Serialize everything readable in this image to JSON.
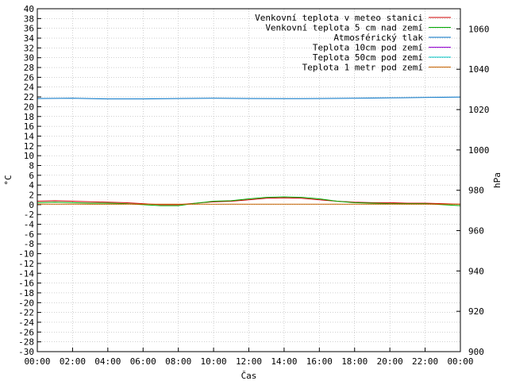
{
  "chart_data": {
    "type": "line",
    "title": "",
    "xlabel": "Čas",
    "ylabel": "°C",
    "y2label": "hPa",
    "ylim": [
      -30,
      40
    ],
    "y2lim": [
      900,
      1070
    ],
    "xlim": [
      0,
      24
    ],
    "x_ticks": [
      "00:00",
      "02:00",
      "04:00",
      "06:00",
      "08:00",
      "10:00",
      "12:00",
      "14:00",
      "16:00",
      "18:00",
      "20:00",
      "22:00",
      "00:00"
    ],
    "y_ticks": [
      40,
      38,
      36,
      34,
      32,
      30,
      28,
      26,
      24,
      22,
      20,
      18,
      16,
      14,
      12,
      10,
      8,
      6,
      4,
      2,
      0,
      -2,
      -4,
      -6,
      -8,
      -10,
      -12,
      -14,
      -16,
      -18,
      -20,
      -22,
      -24,
      -26,
      -28,
      -30
    ],
    "y2_ticks": [
      1060,
      1040,
      1020,
      1000,
      980,
      960,
      940,
      920,
      900
    ],
    "grid": true,
    "legend_position": "top-right",
    "series": [
      {
        "name": "Venkovní teplota v meteo stanici",
        "color": "#cc0000",
        "axis": "left",
        "x": [
          0,
          1,
          2,
          3,
          4,
          5,
          6,
          7,
          8,
          9,
          10,
          11,
          12,
          13,
          14,
          15,
          16,
          17,
          18,
          19,
          20,
          21,
          22,
          23,
          24
        ],
        "values": [
          0.7,
          0.8,
          0.7,
          0.6,
          0.5,
          0.4,
          0.2,
          0.0,
          0.0,
          0.3,
          0.6,
          0.7,
          1.0,
          1.3,
          1.4,
          1.3,
          1.0,
          0.7,
          0.5,
          0.4,
          0.4,
          0.3,
          0.3,
          0.2,
          0.1
        ]
      },
      {
        "name": "Venkovní teplota 5 cm nad zemí",
        "color": "#00aa00",
        "axis": "left",
        "x": [
          0,
          1,
          2,
          3,
          4,
          5,
          6,
          7,
          8,
          9,
          10,
          11,
          12,
          13,
          14,
          15,
          16,
          17,
          18,
          19,
          20,
          21,
          22,
          23,
          24
        ],
        "values": [
          0.4,
          0.5,
          0.4,
          0.3,
          0.3,
          0.2,
          0.0,
          -0.2,
          -0.2,
          0.3,
          0.7,
          0.8,
          1.2,
          1.5,
          1.6,
          1.5,
          1.2,
          0.7,
          0.4,
          0.3,
          0.2,
          0.2,
          0.2,
          0.0,
          -0.2
        ]
      },
      {
        "name": "Atmosférický tlak",
        "color": "#0072c6",
        "axis": "right",
        "x": [
          0,
          2,
          4,
          6,
          8,
          10,
          12,
          14,
          16,
          18,
          20,
          22,
          24
        ],
        "values": [
          1025.5,
          1025.6,
          1025.3,
          1025.3,
          1025.5,
          1025.6,
          1025.5,
          1025.4,
          1025.5,
          1025.6,
          1025.8,
          1026.0,
          1026.2
        ]
      },
      {
        "name": "Teplota 10cm pod zemí",
        "color": "#9400d3",
        "axis": "left",
        "x": [],
        "values": []
      },
      {
        "name": "Teplota 50cm pod zemí",
        "color": "#00c8c8",
        "axis": "left",
        "x": [],
        "values": []
      },
      {
        "name": "Teplota 1 metr pod zemí",
        "color": "#c86400",
        "axis": "left",
        "x": [
          0,
          24
        ],
        "values": [
          0.1,
          0.1
        ]
      }
    ]
  }
}
